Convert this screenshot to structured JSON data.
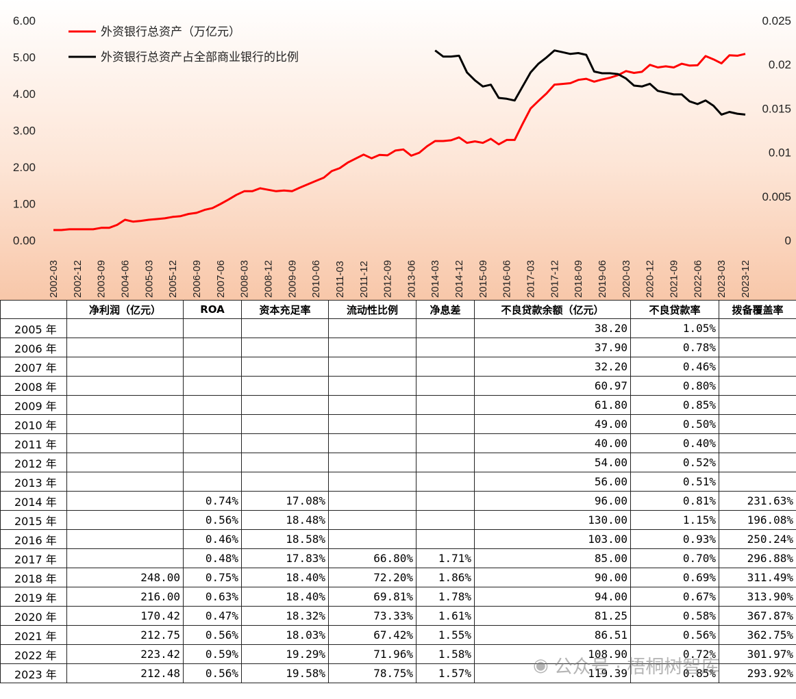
{
  "chart_data": {
    "type": "line",
    "title": "",
    "xlabel": "",
    "ylabel": "",
    "ylim": [
      0,
      6
    ],
    "y2lim": [
      0,
      0.025
    ],
    "y_ticks": [
      "0.00",
      "1.00",
      "2.00",
      "3.00",
      "4.00",
      "5.00",
      "6.00"
    ],
    "y2_ticks": [
      "0",
      "0.005",
      "0.01",
      "0.015",
      "0.02",
      "0.025"
    ],
    "x_tick_labels": [
      "2002-03",
      "2002-12",
      "2003-09",
      "2004-06",
      "2005-03",
      "2005-12",
      "2006-09",
      "2007-06",
      "2008-03",
      "2008-12",
      "2009-09",
      "2010-06",
      "2011-03",
      "2011-12",
      "2012-09",
      "2013-06",
      "2014-03",
      "2014-12",
      "2015-09",
      "2016-06",
      "2017-03",
      "2017-12",
      "2018-09",
      "2019-06",
      "2020-03",
      "2020-12",
      "2021-09",
      "2022-06",
      "2023-03",
      "2023-12"
    ],
    "legend_position": "top-left",
    "series": [
      {
        "name": "外资银行总资产（万亿元）",
        "color": "#ff0000",
        "axis": "left",
        "values": [
          0.28,
          0.28,
          0.3,
          0.3,
          0.3,
          0.3,
          0.34,
          0.34,
          0.42,
          0.56,
          0.51,
          0.53,
          0.56,
          0.58,
          0.6,
          0.64,
          0.66,
          0.72,
          0.75,
          0.83,
          0.88,
          0.99,
          1.11,
          1.24,
          1.34,
          1.34,
          1.42,
          1.38,
          1.34,
          1.36,
          1.34,
          1.44,
          1.53,
          1.62,
          1.71,
          1.89,
          1.97,
          2.12,
          2.23,
          2.34,
          2.24,
          2.33,
          2.32,
          2.45,
          2.48,
          2.31,
          2.39,
          2.57,
          2.71,
          2.71,
          2.73,
          2.81,
          2.66,
          2.7,
          2.66,
          2.77,
          2.62,
          2.74,
          2.74,
          3.18,
          3.6,
          3.81,
          4.01,
          4.25,
          4.27,
          4.29,
          4.38,
          4.41,
          4.33,
          4.39,
          4.44,
          4.51,
          4.62,
          4.57,
          4.6,
          4.79,
          4.72,
          4.75,
          4.72,
          4.82,
          4.77,
          4.78,
          5.03,
          4.94,
          4.83,
          5.05,
          5.04,
          5.09
        ]
      },
      {
        "name": "外资银行总资产占全部商业银行的比例",
        "color": "#000000",
        "axis": "right",
        "start_index": 48,
        "values": [
          0.0216,
          0.0209,
          0.0209,
          0.021,
          0.0191,
          0.0182,
          0.0175,
          0.0177,
          0.0162,
          0.0161,
          0.0159,
          0.0175,
          0.0191,
          0.0201,
          0.0208,
          0.0216,
          0.0214,
          0.0212,
          0.0213,
          0.0211,
          0.0192,
          0.019,
          0.019,
          0.0189,
          0.0184,
          0.0176,
          0.0175,
          0.0178,
          0.017,
          0.0168,
          0.0166,
          0.0166,
          0.0158,
          0.0155,
          0.0159,
          0.0153,
          0.0143,
          0.0146,
          0.0144,
          0.0143
        ]
      }
    ]
  },
  "table": {
    "headers": [
      "",
      "净利润（亿元）",
      "ROA",
      "资本充足率",
      "流动性比例",
      "净息差",
      "不良贷款余额（亿元）",
      "不良贷款率",
      "拨备覆盖率"
    ],
    "rows": [
      [
        "2005 年",
        "",
        "",
        "",
        "",
        "",
        "38.20",
        "1.05%",
        ""
      ],
      [
        "2006 年",
        "",
        "",
        "",
        "",
        "",
        "37.90",
        "0.78%",
        ""
      ],
      [
        "2007 年",
        "",
        "",
        "",
        "",
        "",
        "32.20",
        "0.46%",
        ""
      ],
      [
        "2008 年",
        "",
        "",
        "",
        "",
        "",
        "60.97",
        "0.80%",
        ""
      ],
      [
        "2009 年",
        "",
        "",
        "",
        "",
        "",
        "61.80",
        "0.85%",
        ""
      ],
      [
        "2010 年",
        "",
        "",
        "",
        "",
        "",
        "49.00",
        "0.50%",
        ""
      ],
      [
        "2011 年",
        "",
        "",
        "",
        "",
        "",
        "40.00",
        "0.40%",
        ""
      ],
      [
        "2012 年",
        "",
        "",
        "",
        "",
        "",
        "54.00",
        "0.52%",
        ""
      ],
      [
        "2013 年",
        "",
        "",
        "",
        "",
        "",
        "56.00",
        "0.51%",
        ""
      ],
      [
        "2014 年",
        "",
        "0.74%",
        "17.08%",
        "",
        "",
        "96.00",
        "0.81%",
        "231.63%"
      ],
      [
        "2015 年",
        "",
        "0.56%",
        "18.48%",
        "",
        "",
        "130.00",
        "1.15%",
        "196.08%"
      ],
      [
        "2016 年",
        "",
        "0.46%",
        "18.58%",
        "",
        "",
        "103.00",
        "0.93%",
        "250.24%"
      ],
      [
        "2017 年",
        "",
        "0.48%",
        "17.83%",
        "66.80%",
        "1.71%",
        "85.00",
        "0.70%",
        "296.88%"
      ],
      [
        "2018 年",
        "248.00",
        "0.75%",
        "18.40%",
        "72.20%",
        "1.86%",
        "90.00",
        "0.69%",
        "311.49%"
      ],
      [
        "2019 年",
        "216.00",
        "0.63%",
        "18.40%",
        "69.81%",
        "1.78%",
        "94.00",
        "0.67%",
        "313.90%"
      ],
      [
        "2020 年",
        "170.42",
        "0.47%",
        "18.32%",
        "73.33%",
        "1.61%",
        "81.25",
        "0.58%",
        "367.87%"
      ],
      [
        "2021 年",
        "212.75",
        "0.56%",
        "18.03%",
        "67.42%",
        "1.55%",
        "86.51",
        "0.56%",
        "362.75%"
      ],
      [
        "2022 年",
        "223.42",
        "0.59%",
        "19.29%",
        "71.96%",
        "1.58%",
        "108.90",
        "0.72%",
        "301.97%"
      ],
      [
        "2023 年",
        "212.48",
        "0.56%",
        "19.58%",
        "78.75%",
        "1.57%",
        "119.39",
        "0.85%",
        "293.92%"
      ]
    ]
  },
  "watermark": {
    "icon": "wechat-icon",
    "text": "公众号 · 梧桐树智库"
  }
}
